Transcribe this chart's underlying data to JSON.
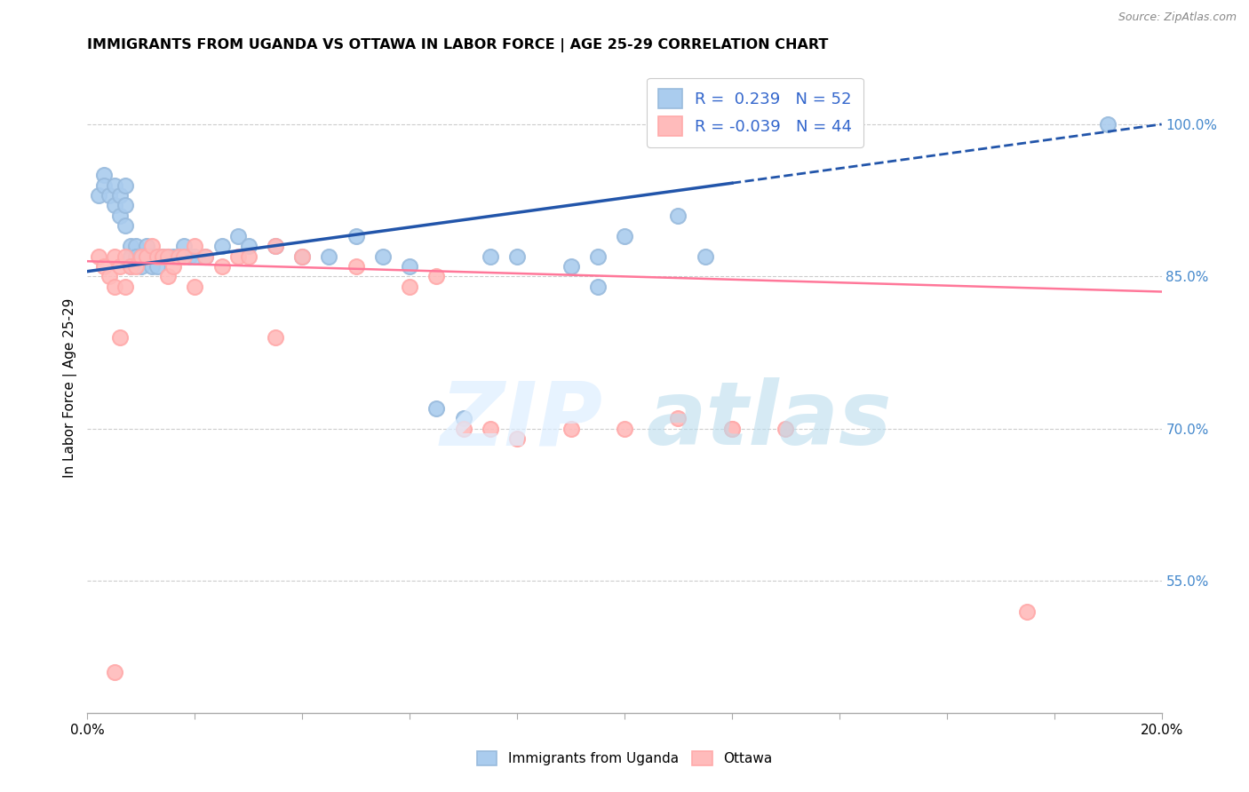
{
  "title": "IMMIGRANTS FROM UGANDA VS OTTAWA IN LABOR FORCE | AGE 25-29 CORRELATION CHART",
  "source": "Source: ZipAtlas.com",
  "ylabel": "In Labor Force | Age 25-29",
  "ytick_labels": [
    "100.0%",
    "85.0%",
    "70.0%",
    "55.0%"
  ],
  "ytick_values": [
    1.0,
    0.85,
    0.7,
    0.55
  ],
  "xlim": [
    0.0,
    0.2
  ],
  "ylim": [
    0.42,
    1.06
  ],
  "legend_r_uganda": "0.239",
  "legend_n_uganda": "52",
  "legend_r_ottawa": "-0.039",
  "legend_n_ottawa": "44",
  "color_uganda": "#99BBDD",
  "color_ottawa": "#FFAAAA",
  "color_uganda_fill": "#AACCEE",
  "color_ottawa_fill": "#FFBBBB",
  "color_uganda_line": "#2255AA",
  "color_ottawa_line": "#FF7799",
  "uganda_x": [
    0.002,
    0.003,
    0.003,
    0.004,
    0.005,
    0.005,
    0.006,
    0.006,
    0.007,
    0.007,
    0.007,
    0.008,
    0.008,
    0.008,
    0.009,
    0.009,
    0.01,
    0.01,
    0.011,
    0.011,
    0.012,
    0.012,
    0.013,
    0.013,
    0.014,
    0.015,
    0.016,
    0.017,
    0.018,
    0.019,
    0.02,
    0.022,
    0.025,
    0.028,
    0.03,
    0.035,
    0.04,
    0.045,
    0.05,
    0.055,
    0.06,
    0.065,
    0.07,
    0.075,
    0.08,
    0.09,
    0.095,
    0.1,
    0.11,
    0.115,
    0.095,
    0.19
  ],
  "uganda_y": [
    0.93,
    0.95,
    0.94,
    0.93,
    0.94,
    0.92,
    0.93,
    0.91,
    0.94,
    0.92,
    0.9,
    0.88,
    0.87,
    0.86,
    0.88,
    0.87,
    0.87,
    0.86,
    0.88,
    0.87,
    0.87,
    0.86,
    0.87,
    0.86,
    0.87,
    0.87,
    0.87,
    0.87,
    0.88,
    0.87,
    0.87,
    0.87,
    0.88,
    0.89,
    0.88,
    0.88,
    0.87,
    0.87,
    0.89,
    0.87,
    0.86,
    0.72,
    0.71,
    0.87,
    0.87,
    0.86,
    0.84,
    0.89,
    0.91,
    0.87,
    0.87,
    1.0
  ],
  "ottawa_x": [
    0.002,
    0.003,
    0.004,
    0.005,
    0.005,
    0.006,
    0.007,
    0.007,
    0.008,
    0.009,
    0.01,
    0.011,
    0.012,
    0.013,
    0.014,
    0.015,
    0.015,
    0.016,
    0.017,
    0.018,
    0.02,
    0.022,
    0.025,
    0.028,
    0.03,
    0.035,
    0.04,
    0.05,
    0.06,
    0.07,
    0.075,
    0.08,
    0.09,
    0.1,
    0.11,
    0.12,
    0.13,
    0.035,
    0.02,
    0.065,
    0.005,
    0.12,
    0.175,
    0.006
  ],
  "ottawa_y": [
    0.87,
    0.86,
    0.85,
    0.87,
    0.84,
    0.86,
    0.87,
    0.84,
    0.86,
    0.86,
    0.87,
    0.87,
    0.88,
    0.87,
    0.87,
    0.87,
    0.85,
    0.86,
    0.87,
    0.87,
    0.88,
    0.87,
    0.86,
    0.87,
    0.87,
    0.88,
    0.87,
    0.86,
    0.84,
    0.7,
    0.7,
    0.69,
    0.7,
    0.7,
    0.71,
    0.7,
    0.7,
    0.79,
    0.84,
    0.85,
    0.46,
    0.7,
    0.52,
    0.79
  ]
}
